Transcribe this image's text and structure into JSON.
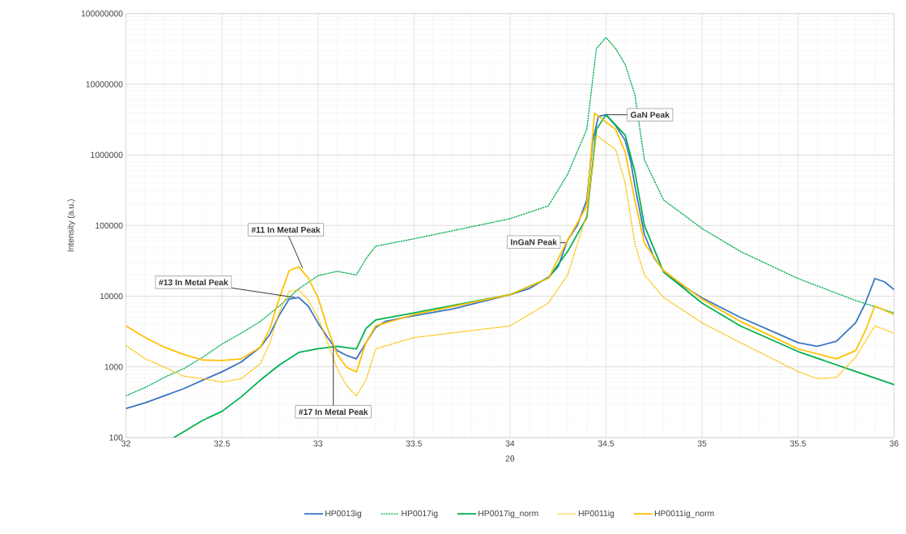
{
  "chart_data": {
    "type": "line",
    "xlabel": "2θ",
    "ylabel": "Intensity (a.u.)",
    "log": "y",
    "grid": true,
    "legend": "bottom",
    "xlim": [
      32,
      36
    ],
    "xticks": [
      32,
      32.5,
      33,
      33.5,
      34,
      34.5,
      35,
      35.5,
      36
    ],
    "ylim": [
      100,
      100000000
    ],
    "yticks": [
      100,
      1000,
      10000,
      100000,
      1000000,
      10000000,
      100000000
    ],
    "series": [
      {
        "name": "HP0013ig",
        "color": "#3a75c4",
        "line_style": "solid",
        "x": [
          32.0,
          32.1,
          32.2,
          32.3,
          32.4,
          32.5,
          32.6,
          32.7,
          32.75,
          32.8,
          32.85,
          32.9,
          32.95,
          33.0,
          33.05,
          33.1,
          33.15,
          33.2,
          33.25,
          33.3,
          33.35,
          33.5,
          33.7,
          34.0,
          34.1,
          34.2,
          34.25,
          34.3,
          34.35,
          34.4,
          34.43,
          34.46,
          34.5,
          34.55,
          34.6,
          34.63,
          34.65,
          34.7,
          34.75,
          34.8,
          34.9,
          35.0,
          35.2,
          35.4,
          35.5,
          35.6,
          35.7,
          35.8,
          35.85,
          35.9,
          35.95,
          36.0
        ],
        "values": [
          257,
          310,
          390,
          490,
          650,
          850,
          1170,
          1900,
          2900,
          5500,
          9100,
          9600,
          7200,
          4200,
          2600,
          1700,
          1450,
          1300,
          2200,
          3600,
          4400,
          5300,
          6600,
          10500,
          12800,
          18600,
          26000,
          62000,
          100000,
          230000,
          1500000,
          3500000,
          3700000,
          2600000,
          1600000,
          780000,
          370000,
          75000,
          35000,
          23000,
          14000,
          9500,
          5000,
          2900,
          2200,
          1960,
          2300,
          4200,
          7900,
          17800,
          16000,
          12400
        ]
      },
      {
        "name": "HP0017ig",
        "color": "#00b050",
        "line_style": "dotted",
        "x": [
          32.0,
          32.1,
          32.2,
          32.3,
          32.4,
          32.5,
          32.6,
          32.7,
          32.8,
          32.9,
          33.0,
          33.1,
          33.2,
          33.25,
          33.3,
          33.5,
          34.0,
          34.2,
          34.3,
          34.4,
          34.45,
          34.5,
          34.55,
          34.6,
          34.65,
          34.7,
          34.8,
          35.0,
          35.2,
          35.5,
          35.8,
          36.0
        ],
        "values": [
          390,
          510,
          710,
          940,
          1370,
          2100,
          3000,
          4400,
          7300,
          12700,
          19500,
          22500,
          20000,
          34000,
          51000,
          65000,
          125000,
          190000,
          530000,
          2300000,
          32000000,
          46000000,
          32000000,
          19000000,
          7200000,
          850000,
          230000,
          91000,
          43000,
          17800,
          8700,
          5800
        ]
      },
      {
        "name": "HP0017ig_norm",
        "color": "#00b050",
        "line_style": "solid",
        "x": [
          32.25,
          32.4,
          32.5,
          32.6,
          32.7,
          32.8,
          32.9,
          33.0,
          33.1,
          33.2,
          33.25,
          33.3,
          33.5,
          34.0,
          34.2,
          34.3,
          34.4,
          34.45,
          34.5,
          34.6,
          34.65,
          34.7,
          34.8,
          35.0,
          35.2,
          35.5,
          35.8,
          36.0
        ],
        "values": [
          100,
          175,
          235,
          375,
          650,
          1070,
          1600,
          1800,
          1960,
          1790,
          3500,
          4600,
          5800,
          10500,
          18000,
          43000,
          130000,
          2300000,
          3700000,
          1900000,
          580000,
          100000,
          22000,
          8000,
          3800,
          1650,
          860,
          560
        ]
      },
      {
        "name": "HP0011ig",
        "color": "#ffc000",
        "line_style": "dotted",
        "x": [
          32.0,
          32.1,
          32.2,
          32.3,
          32.4,
          32.5,
          32.6,
          32.7,
          32.75,
          32.8,
          32.85,
          32.9,
          32.95,
          33.0,
          33.05,
          33.1,
          33.15,
          33.2,
          33.25,
          33.3,
          33.5,
          34.0,
          34.2,
          34.3,
          34.4,
          34.45,
          34.5,
          34.55,
          34.6,
          34.65,
          34.7,
          34.8,
          35.0,
          35.2,
          35.5,
          35.6,
          35.7,
          35.8,
          35.9,
          36.0
        ],
        "values": [
          2000,
          1300,
          990,
          740,
          680,
          610,
          680,
          1110,
          2200,
          6100,
          11700,
          12300,
          8800,
          5000,
          2200,
          940,
          540,
          390,
          650,
          1800,
          2600,
          3800,
          8000,
          20000,
          145000,
          1900000,
          1500000,
          1200000,
          400000,
          56000,
          20000,
          9600,
          4200,
          2200,
          860,
          680,
          710,
          1370,
          3800,
          3000
        ]
      },
      {
        "name": "HP0011ig_norm",
        "color": "#ffc000",
        "line_style": "solid",
        "x": [
          32.0,
          32.1,
          32.2,
          32.3,
          32.4,
          32.5,
          32.6,
          32.7,
          32.75,
          32.8,
          32.85,
          32.9,
          32.95,
          33.0,
          33.05,
          33.1,
          33.15,
          33.2,
          33.25,
          33.3,
          33.5,
          34.0,
          34.2,
          34.3,
          34.4,
          34.44,
          34.5,
          34.55,
          34.6,
          34.65,
          34.7,
          34.8,
          35.0,
          35.2,
          35.5,
          35.7,
          35.8,
          35.85,
          35.9,
          36.0
        ],
        "values": [
          3800,
          2600,
          1900,
          1500,
          1250,
          1230,
          1300,
          1900,
          3500,
          9600,
          23000,
          26000,
          18000,
          9600,
          3500,
          1500,
          980,
          850,
          2200,
          3800,
          5500,
          10500,
          18000,
          62000,
          190000,
          3900000,
          2900000,
          2300000,
          1100000,
          230000,
          56000,
          23000,
          9100,
          4400,
          1800,
          1300,
          1700,
          3200,
          7300,
          5500
        ]
      }
    ],
    "annotations": [
      {
        "text": "#11 In Metal Peak",
        "x": 32.92,
        "y": 25000
      },
      {
        "text": "#13 In Metal Peak",
        "x": 32.88,
        "y": 9600
      },
      {
        "text": "#17 In Metal Peak",
        "x": 33.08,
        "y": 1960
      },
      {
        "text": "InGaN Peak",
        "x": 34.29,
        "y": 57000
      },
      {
        "text": "GaN Peak",
        "x": 34.5,
        "y": 3700000
      }
    ]
  }
}
